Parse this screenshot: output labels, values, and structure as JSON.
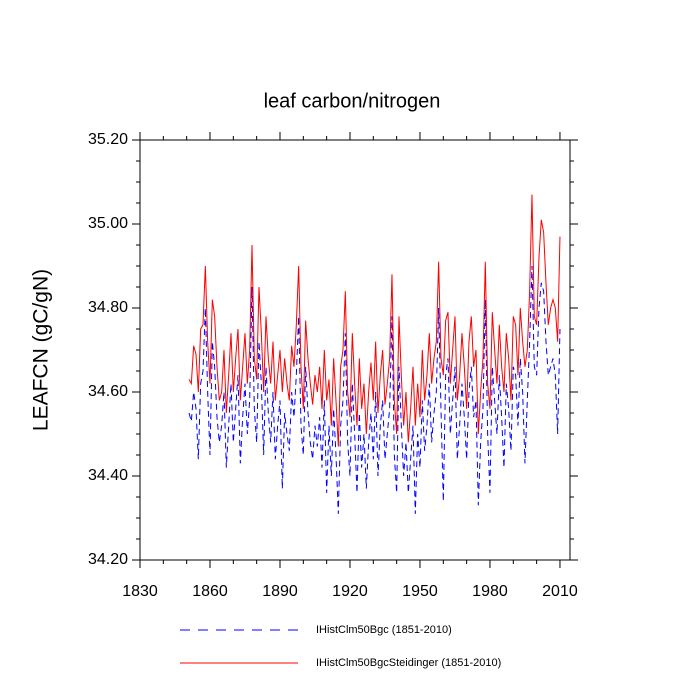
{
  "chart_data": {
    "type": "line",
    "title": "leaf carbon/nitrogen",
    "y_label": "LEAFCN  (gC/gN)",
    "xlim": [
      1830,
      2014.3
    ],
    "xticks": [
      1830,
      1860,
      1890,
      1920,
      1950,
      1980,
      2010
    ],
    "ylim": [
      34.2,
      35.2
    ],
    "yticks": [
      {
        "value": 34.2,
        "label": "34.20"
      },
      {
        "value": 34.4,
        "label": "34.40"
      },
      {
        "value": 34.6,
        "label": "34.60"
      },
      {
        "value": 34.8,
        "label": "34.80"
      },
      {
        "value": 35.0,
        "label": "35.00"
      },
      {
        "value": 35.2,
        "label": "35.20"
      }
    ],
    "grid": false,
    "legend": "bottom",
    "x": [
      1851,
      1852,
      1853,
      1854,
      1855,
      1856,
      1857,
      1858,
      1859,
      1860,
      1861,
      1862,
      1863,
      1864,
      1865,
      1866,
      1867,
      1868,
      1869,
      1870,
      1871,
      1872,
      1873,
      1874,
      1875,
      1876,
      1877,
      1878,
      1879,
      1880,
      1881,
      1882,
      1883,
      1884,
      1885,
      1886,
      1887,
      1888,
      1889,
      1890,
      1891,
      1892,
      1893,
      1894,
      1895,
      1896,
      1897,
      1898,
      1899,
      1900,
      1901,
      1902,
      1903,
      1904,
      1905,
      1906,
      1907,
      1908,
      1909,
      1910,
      1911,
      1912,
      1913,
      1914,
      1915,
      1916,
      1917,
      1918,
      1919,
      1920,
      1921,
      1922,
      1923,
      1924,
      1925,
      1926,
      1927,
      1928,
      1929,
      1930,
      1931,
      1932,
      1933,
      1934,
      1935,
      1936,
      1937,
      1938,
      1939,
      1940,
      1941,
      1942,
      1943,
      1944,
      1945,
      1946,
      1947,
      1948,
      1949,
      1950,
      1951,
      1952,
      1953,
      1954,
      1955,
      1956,
      1957,
      1958,
      1959,
      1960,
      1961,
      1962,
      1963,
      1964,
      1965,
      1966,
      1967,
      1968,
      1969,
      1970,
      1971,
      1972,
      1973,
      1974,
      1975,
      1976,
      1977,
      1978,
      1979,
      1980,
      1981,
      1982,
      1983,
      1984,
      1985,
      1986,
      1987,
      1988,
      1989,
      1990,
      1991,
      1992,
      1993,
      1994,
      1995,
      1996,
      1997,
      1998,
      1999,
      2000,
      2001,
      2002,
      2003,
      2004,
      2005,
      2006,
      2007,
      2008,
      2009,
      2010
    ],
    "series": [
      {
        "name": "IHistClm50Bgc (1851-2010)",
        "color": "#0000ff",
        "dash": true,
        "values": [
          34.55,
          34.53,
          34.6,
          34.56,
          34.44,
          34.62,
          34.65,
          34.8,
          34.6,
          34.45,
          34.72,
          34.66,
          34.54,
          34.48,
          34.52,
          34.6,
          34.42,
          34.52,
          34.62,
          34.48,
          34.56,
          34.64,
          34.43,
          34.54,
          34.62,
          34.5,
          34.58,
          34.85,
          34.56,
          34.48,
          34.72,
          34.62,
          34.45,
          34.66,
          34.55,
          34.48,
          34.6,
          34.44,
          34.52,
          34.58,
          34.37,
          34.55,
          34.5,
          34.46,
          34.6,
          34.54,
          34.64,
          34.78,
          34.52,
          34.45,
          34.66,
          34.55,
          34.48,
          34.44,
          34.52,
          34.47,
          34.54,
          34.42,
          34.58,
          34.36,
          34.52,
          34.4,
          34.56,
          34.45,
          34.31,
          34.52,
          34.58,
          34.74,
          34.48,
          34.4,
          34.62,
          34.5,
          34.36,
          34.55,
          34.42,
          34.5,
          34.37,
          34.48,
          34.55,
          34.44,
          34.6,
          34.4,
          34.52,
          34.58,
          34.44,
          34.5,
          34.56,
          34.78,
          34.45,
          34.36,
          34.66,
          34.52,
          34.4,
          34.48,
          34.36,
          34.44,
          34.52,
          34.31,
          34.5,
          34.42,
          34.58,
          34.46,
          34.52,
          34.62,
          34.48,
          34.55,
          34.6,
          34.8,
          34.56,
          34.34,
          34.64,
          34.68,
          34.5,
          34.58,
          34.66,
          34.44,
          34.52,
          34.62,
          34.54,
          34.44,
          34.6,
          34.66,
          34.54,
          34.58,
          34.33,
          34.48,
          34.56,
          34.82,
          34.5,
          34.36,
          34.66,
          34.58,
          34.5,
          34.64,
          34.54,
          34.42,
          34.62,
          34.56,
          34.46,
          34.66,
          34.64,
          34.52,
          34.68,
          34.6,
          34.43,
          34.58,
          34.72,
          34.9,
          34.66,
          34.64,
          34.8,
          34.86,
          34.84,
          34.72,
          34.64,
          34.66,
          34.68,
          34.64,
          34.5,
          34.75
        ]
      },
      {
        "name": "IHistClm50BgcSteidinger (1851-2010)",
        "color": "#ff0000",
        "dash": false,
        "values": [
          34.63,
          34.62,
          34.71,
          34.69,
          34.6,
          34.75,
          34.76,
          34.9,
          34.72,
          34.62,
          34.82,
          34.78,
          34.66,
          34.58,
          34.6,
          34.7,
          34.55,
          34.64,
          34.74,
          34.6,
          34.68,
          34.75,
          34.58,
          34.66,
          34.74,
          34.62,
          34.7,
          34.95,
          34.68,
          34.63,
          34.85,
          34.74,
          34.6,
          34.78,
          34.68,
          34.62,
          34.72,
          34.58,
          34.64,
          34.7,
          34.6,
          34.68,
          34.62,
          34.58,
          34.71,
          34.66,
          34.76,
          34.9,
          34.66,
          34.56,
          34.77,
          34.68,
          34.62,
          34.57,
          34.64,
          34.6,
          34.66,
          34.56,
          34.7,
          34.58,
          34.63,
          34.52,
          34.68,
          34.58,
          34.47,
          34.66,
          34.7,
          34.84,
          34.6,
          34.54,
          34.74,
          34.62,
          34.52,
          34.68,
          34.56,
          34.62,
          34.5,
          34.6,
          34.67,
          34.58,
          34.72,
          34.55,
          34.64,
          34.7,
          34.57,
          34.62,
          34.68,
          34.88,
          34.58,
          34.5,
          34.78,
          34.64,
          34.52,
          34.6,
          34.48,
          34.56,
          34.66,
          34.52,
          34.62,
          34.54,
          34.7,
          34.58,
          34.64,
          34.74,
          34.62,
          34.68,
          34.72,
          34.91,
          34.68,
          34.64,
          34.77,
          34.79,
          34.62,
          34.7,
          34.78,
          34.58,
          34.64,
          34.74,
          34.66,
          34.56,
          34.72,
          34.78,
          34.66,
          34.7,
          34.5,
          34.6,
          34.68,
          34.91,
          34.62,
          34.56,
          34.79,
          34.7,
          34.62,
          34.76,
          34.66,
          34.6,
          34.74,
          34.68,
          34.58,
          34.78,
          34.76,
          34.64,
          34.8,
          34.72,
          34.66,
          34.7,
          34.84,
          35.07,
          34.78,
          34.76,
          34.92,
          35.01,
          34.98,
          34.86,
          34.76,
          34.8,
          34.82,
          34.8,
          34.72,
          34.97
        ]
      }
    ]
  }
}
